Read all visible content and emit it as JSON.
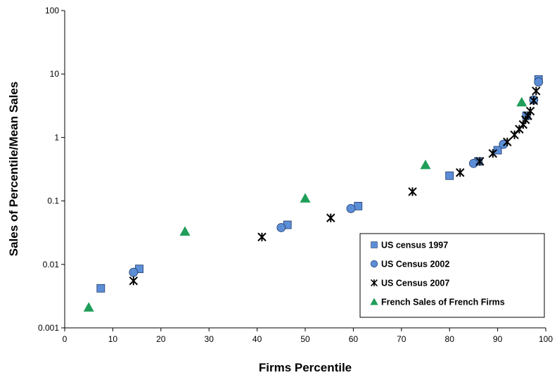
{
  "chart_data": {
    "type": "scatter",
    "xlabel": "Firms Percentile",
    "ylabel": "Sales of Percentile/Mean Sales",
    "xlim": [
      0,
      100
    ],
    "ylim": [
      0.001,
      100
    ],
    "yscale": "log",
    "grid": false,
    "legend_position": "bottom-right",
    "x_ticks": [
      "0",
      "10",
      "20",
      "30",
      "40",
      "50",
      "60",
      "70",
      "80",
      "90",
      "100"
    ],
    "y_ticks": [
      "0.001",
      "0.01",
      "0.1",
      "1",
      "10",
      "100"
    ],
    "series": [
      {
        "name": "US census 1997",
        "marker": "square",
        "color": "#5b8ed6",
        "points": [
          [
            7.5,
            0.0042
          ],
          [
            15.5,
            0.0085
          ],
          [
            46.3,
            0.042
          ],
          [
            61,
            0.083
          ],
          [
            80,
            0.25
          ],
          [
            86,
            0.42
          ],
          [
            90,
            0.63
          ],
          [
            96,
            2.2
          ],
          [
            98.5,
            8.2
          ]
        ]
      },
      {
        "name": "US Census 2002",
        "marker": "circle",
        "color": "#5b8ed6",
        "points": [
          [
            14.3,
            0.0075
          ],
          [
            45,
            0.038
          ],
          [
            59.5,
            0.076
          ],
          [
            85,
            0.39
          ],
          [
            91.2,
            0.78
          ],
          [
            97.5,
            3.9
          ],
          [
            98.5,
            7.5
          ]
        ]
      },
      {
        "name": "US Census 2007",
        "marker": "star",
        "color": "#000000",
        "points": [
          [
            14.3,
            0.0055
          ],
          [
            41,
            0.027
          ],
          [
            55.3,
            0.054
          ],
          [
            72.3,
            0.14
          ],
          [
            82.2,
            0.28
          ],
          [
            86.3,
            0.42
          ],
          [
            89,
            0.56
          ],
          [
            92,
            0.85
          ],
          [
            93.5,
            1.1
          ],
          [
            94.5,
            1.35
          ],
          [
            95.3,
            1.6
          ],
          [
            95.8,
            1.9
          ],
          [
            96.3,
            2.2
          ],
          [
            96.8,
            2.6
          ],
          [
            97.5,
            3.8
          ],
          [
            98,
            5.4
          ]
        ]
      },
      {
        "name": "French Sales of French Firms",
        "marker": "triangle",
        "color": "#1f9e5a",
        "points": [
          [
            5,
            0.0021
          ],
          [
            25,
            0.033
          ],
          [
            50,
            0.11
          ],
          [
            75,
            0.37
          ],
          [
            95,
            3.6
          ]
        ]
      }
    ]
  }
}
